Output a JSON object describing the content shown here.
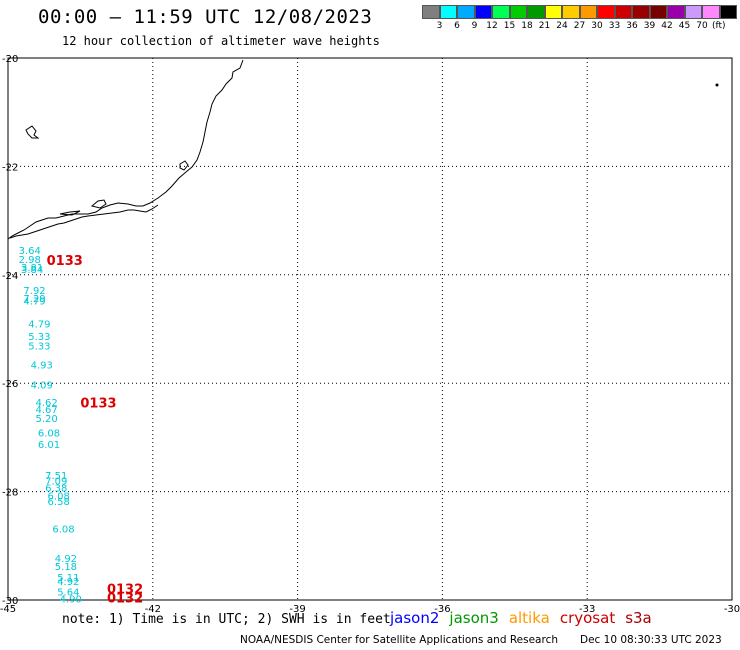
{
  "header": {
    "title": "00:00 – 11:59 UTC 12/08/2023",
    "subtitle": "12 hour collection of altimeter wave heights"
  },
  "colorbar": {
    "colors": [
      "#7f7f7f",
      "#00ffff",
      "#00aaff",
      "#0000ff",
      "#00ff55",
      "#00cc00",
      "#009900",
      "#ffff00",
      "#ffcc00",
      "#ff9900",
      "#ff0000",
      "#cc0000",
      "#990000",
      "#770000",
      "#9900aa",
      "#cc99ff",
      "#ff88ff",
      "#000000"
    ],
    "labels": [
      "3",
      "6",
      "9",
      "12",
      "15",
      "18",
      "21",
      "24",
      "27",
      "30",
      "33",
      "36",
      "39",
      "42",
      "45",
      "70"
    ],
    "unit": "(ft)"
  },
  "axes": {
    "lat_ticks": [
      "-20",
      "-22",
      "-24",
      "-26",
      "-28",
      "-30"
    ],
    "lon_ticks": [
      "-45",
      "-42",
      "-39",
      "-36",
      "-33",
      "-30"
    ],
    "lat_range": [
      -30,
      -20
    ],
    "lon_range": [
      -45,
      -30
    ]
  },
  "observations": [
    {
      "lon": -44.55,
      "lat": -23.62,
      "value": "3.64"
    },
    {
      "lon": -44.55,
      "lat": -23.78,
      "value": "2.98"
    },
    {
      "lon": -44.5,
      "lat": -23.93,
      "value": "3.81"
    },
    {
      "lon": -44.5,
      "lat": -23.97,
      "value": "3.84"
    },
    {
      "lon": -44.45,
      "lat": -24.35,
      "value": "7.92"
    },
    {
      "lon": -44.45,
      "lat": -24.5,
      "value": "7.29"
    },
    {
      "lon": -44.45,
      "lat": -24.55,
      "value": "4.79"
    },
    {
      "lon": -44.35,
      "lat": -24.97,
      "value": "4.79"
    },
    {
      "lon": -44.35,
      "lat": -25.2,
      "value": "5.33"
    },
    {
      "lon": -44.35,
      "lat": -25.38,
      "value": "5.33"
    },
    {
      "lon": -44.3,
      "lat": -25.73,
      "value": "4.93"
    },
    {
      "lon": -44.3,
      "lat": -26.1,
      "value": "4.09"
    },
    {
      "lon": -44.2,
      "lat": -26.42,
      "value": "4.62"
    },
    {
      "lon": -44.2,
      "lat": -26.55,
      "value": "4.67"
    },
    {
      "lon": -44.2,
      "lat": -26.72,
      "value": "5.20"
    },
    {
      "lon": -44.15,
      "lat": -26.98,
      "value": "6.08"
    },
    {
      "lon": -44.15,
      "lat": -27.2,
      "value": "6.01"
    },
    {
      "lon": -44.0,
      "lat": -27.77,
      "value": "7.51"
    },
    {
      "lon": -44.0,
      "lat": -27.87,
      "value": "7.09"
    },
    {
      "lon": -44.0,
      "lat": -28.0,
      "value": "6.38"
    },
    {
      "lon": -43.95,
      "lat": -28.15,
      "value": "6.08"
    },
    {
      "lon": -43.95,
      "lat": -28.25,
      "value": "6.58"
    },
    {
      "lon": -43.85,
      "lat": -28.75,
      "value": "6.08"
    },
    {
      "lon": -43.8,
      "lat": -29.3,
      "value": "4.92"
    },
    {
      "lon": -43.8,
      "lat": -29.45,
      "value": "5.18"
    },
    {
      "lon": -43.75,
      "lat": -29.65,
      "value": "5.11"
    },
    {
      "lon": -43.75,
      "lat": -29.72,
      "value": "4.92"
    },
    {
      "lon": -43.75,
      "lat": -29.92,
      "value": "5.64"
    },
    {
      "lon": -43.7,
      "lat": -30.05,
      "value": "4.90"
    }
  ],
  "passes": [
    {
      "lon": -44.2,
      "lat": -23.82,
      "label": "0133"
    },
    {
      "lon": -43.5,
      "lat": -26.45,
      "label": "0133"
    },
    {
      "lon": -42.95,
      "lat": -29.88,
      "label": "0132"
    },
    {
      "lon": -42.95,
      "lat": -30.05,
      "label": "0132"
    }
  ],
  "note": "note: 1) Time is in UTC; 2) SWH is in feet",
  "legend": [
    {
      "name": "jason2",
      "color": "#0000ff"
    },
    {
      "name": "jason3",
      "color": "#009900"
    },
    {
      "name": "altika",
      "color": "#ff9900"
    },
    {
      "name": "cryosat",
      "color": "#cc0000"
    },
    {
      "name": "s3a",
      "color": "#aa0000"
    }
  ],
  "footer": "NOAA/NESDIS Center for Satellite Applications and Research",
  "timestamp": "Dec 10 08:30:33 UTC 2023"
}
